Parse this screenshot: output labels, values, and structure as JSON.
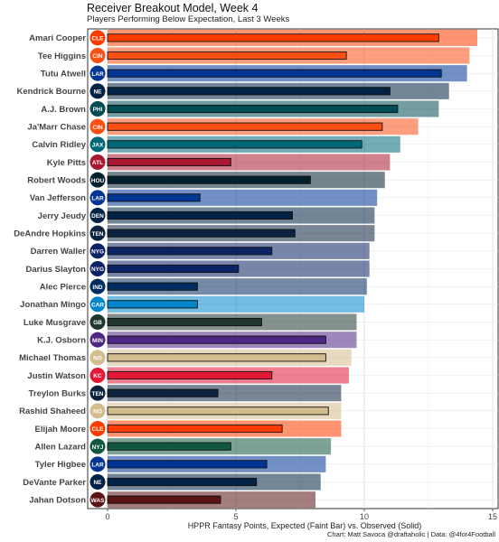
{
  "title": "Receiver Breakout Model, Week 4",
  "subtitle": "Players Performing Below Expectation, Last 3 Weeks",
  "caption": "Chart: Matt Savoca @draftaholic | Data: @4for4Football",
  "chart_data": {
    "type": "bar",
    "orientation": "horizontal",
    "xlabel": "HPPR Fantasy Points, Expected (Faint Bar) vs. Observed (Solid)",
    "xlim": [
      -0.6,
      15.2
    ],
    "xticks": [
      0,
      5,
      10,
      15
    ],
    "grid": true,
    "categories": [
      "Amari Cooper",
      "Tee Higgins",
      "Tutu Atwell",
      "Kendrick Bourne",
      "A.J. Brown",
      "Ja'Marr Chase",
      "Calvin Ridley",
      "Kyle Pitts",
      "Robert Woods",
      "Van Jefferson",
      "Jerry Jeudy",
      "DeAndre Hopkins",
      "Darren Waller",
      "Darius Slayton",
      "Alec Pierce",
      "Jonathan Mingo",
      "Luke Musgrave",
      "K.J. Osborn",
      "Michael Thomas",
      "Justin Watson",
      "Treylon Burks",
      "Rashid Shaheed",
      "Elijah Moore",
      "Allen Lazard",
      "Tyler Higbee",
      "DeVante Parker",
      "Jahan Dotson"
    ],
    "teams": [
      "CLE",
      "CIN",
      "LAR",
      "NE",
      "PHI",
      "CIN",
      "JAX",
      "ATL",
      "HOU",
      "LAR",
      "DEN",
      "TEN",
      "NYG",
      "NYG",
      "IND",
      "CAR",
      "GB",
      "MIN",
      "NO",
      "KC",
      "TEN",
      "NO",
      "CLE",
      "NYJ",
      "LAR",
      "NE",
      "WAS"
    ],
    "team_colors": [
      "#FF3C00",
      "#FB4F14",
      "#003594",
      "#002244",
      "#004C54",
      "#FB4F14",
      "#006778",
      "#A71930",
      "#03202F",
      "#003594",
      "#002244",
      "#0C2340",
      "#0B2265",
      "#0B2265",
      "#002C5F",
      "#0085CA",
      "#203731",
      "#4F2683",
      "#D3BC8D",
      "#E31837",
      "#0C2340",
      "#D3BC8D",
      "#FF3C00",
      "#125740",
      "#003594",
      "#002244",
      "#5A1414"
    ],
    "series": [
      {
        "name": "Expected",
        "values": [
          14.4,
          14.1,
          14.0,
          13.3,
          12.9,
          12.1,
          11.4,
          11.0,
          10.8,
          10.5,
          10.4,
          10.4,
          10.2,
          10.2,
          10.1,
          10.0,
          9.7,
          9.7,
          9.5,
          9.4,
          9.1,
          9.1,
          9.1,
          8.7,
          8.5,
          8.3,
          8.1
        ]
      },
      {
        "name": "Observed",
        "values": [
          12.9,
          9.3,
          13.0,
          11.0,
          11.3,
          10.7,
          9.9,
          4.8,
          7.9,
          3.6,
          7.2,
          7.3,
          6.4,
          5.1,
          3.5,
          3.5,
          6.0,
          8.5,
          8.5,
          6.4,
          4.3,
          8.6,
          6.8,
          4.8,
          6.2,
          5.8,
          4.4
        ]
      }
    ]
  }
}
